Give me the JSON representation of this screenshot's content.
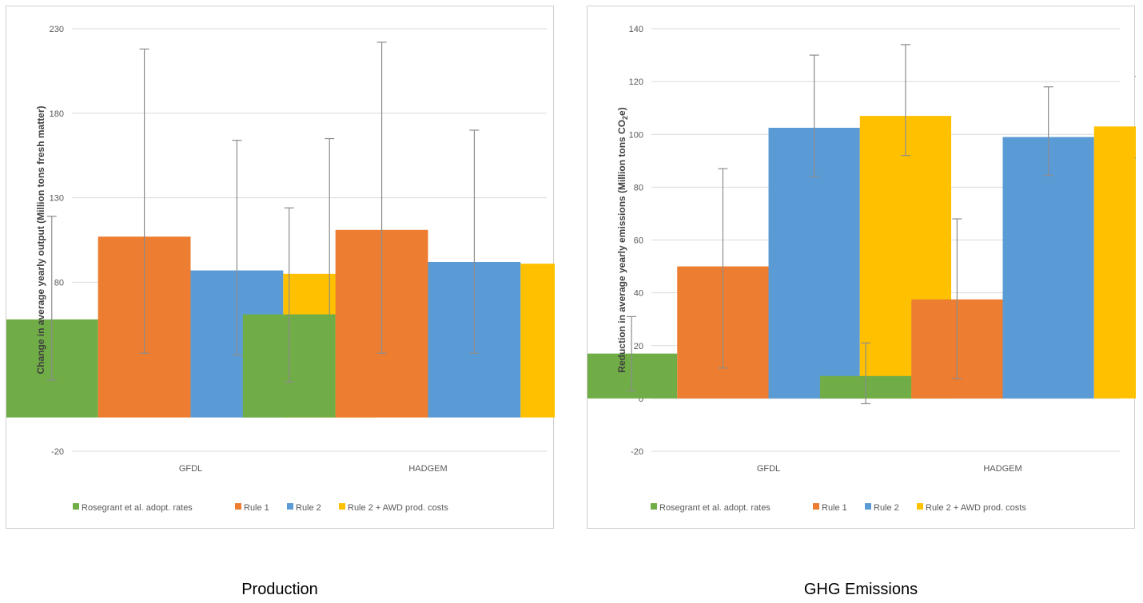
{
  "chart_data": [
    {
      "type": "bar",
      "title": "",
      "xlabel": "",
      "ylabel": "Change in average yearly output (Million tons fresh matter)",
      "categories": [
        "GFDL",
        "HADGEM"
      ],
      "ylim": [
        -20,
        230
      ],
      "yticks": [
        230,
        180,
        130,
        80,
        30,
        -20
      ],
      "grid": true,
      "legend_position": "bottom",
      "series": [
        {
          "name": "Rosegrant et al. adopt. rates",
          "color": "#70ad47",
          "values": [
            58,
            61
          ],
          "err_low": [
            22,
            21
          ],
          "err_high": [
            119,
            124
          ]
        },
        {
          "name": "Rule 1",
          "color": "#ed7d31",
          "values": [
            107,
            111
          ],
          "err_low": [
            38,
            38
          ],
          "err_high": [
            218,
            222
          ]
        },
        {
          "name": "Rule 2",
          "color": "#5b9bd5",
          "values": [
            87,
            92
          ],
          "err_low": [
            37,
            38
          ],
          "err_high": [
            164,
            170
          ]
        },
        {
          "name": "Rule 2 + AWD prod. costs",
          "color": "#ffc000",
          "values": [
            85,
            91
          ],
          "err_low": [
            36,
            36
          ],
          "err_high": [
            165,
            171
          ]
        }
      ]
    },
    {
      "type": "bar",
      "title": "",
      "xlabel": "",
      "ylabel": "Reduction in average yearly emissions (Million tons CO",
      "ylabel_sub": "2",
      "ylabel_tail": "e)",
      "categories": [
        "GFDL",
        "HADGEM"
      ],
      "ylim": [
        -20,
        140
      ],
      "yticks": [
        140,
        120,
        100,
        80,
        60,
        40,
        20,
        0,
        -20
      ],
      "grid": true,
      "legend_position": "bottom",
      "series": [
        {
          "name": "Rosegrant et al. adopt. rates",
          "color": "#70ad47",
          "values": [
            17,
            8.5
          ],
          "err_low": [
            3,
            -2
          ],
          "err_high": [
            31,
            21
          ]
        },
        {
          "name": "Rule 1",
          "color": "#ed7d31",
          "values": [
            50,
            37.5
          ],
          "err_low": [
            11.5,
            7.5
          ],
          "err_high": [
            87,
            68
          ]
        },
        {
          "name": "Rule 2",
          "color": "#5b9bd5",
          "values": [
            102.5,
            99
          ],
          "err_low": [
            84,
            84.5
          ],
          "err_high": [
            130,
            118
          ]
        },
        {
          "name": "Rule 2 + AWD prod. costs",
          "color": "#ffc000",
          "values": [
            107,
            103
          ],
          "err_low": [
            92,
            91
          ],
          "err_high": [
            134,
            122
          ]
        }
      ]
    }
  ],
  "captions": {
    "production": "Production",
    "ghg": "GHG Emissions"
  }
}
